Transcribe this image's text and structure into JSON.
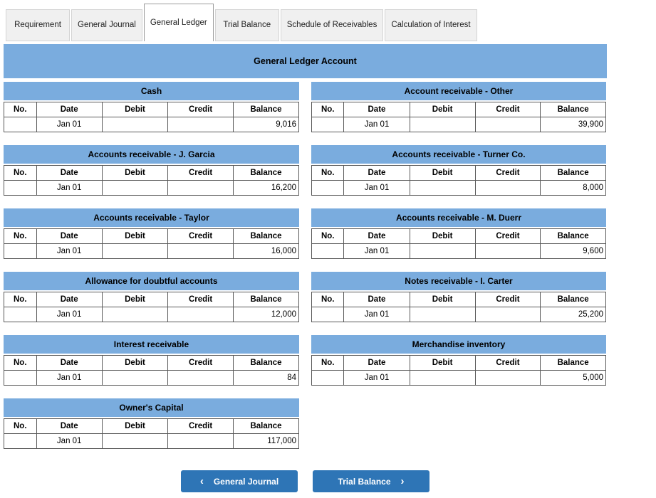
{
  "tabs": [
    {
      "label": "Requirement",
      "active": false
    },
    {
      "label": "General Journal",
      "active": false
    },
    {
      "label": "General Ledger",
      "active": true
    },
    {
      "label": "Trial Balance",
      "active": false
    },
    {
      "label": "Schedule of Receivables",
      "active": false
    },
    {
      "label": "Calculation of Interest",
      "active": false
    }
  ],
  "header": {
    "title": "General Ledger Account"
  },
  "table_columns": [
    "No.",
    "Date",
    "Debit",
    "Credit",
    "Balance"
  ],
  "accounts": [
    {
      "column": "left",
      "title": "Cash",
      "row": {
        "no": "",
        "date": "Jan 01",
        "debit": "",
        "credit": "",
        "balance": "9,016"
      }
    },
    {
      "column": "right",
      "title": "Account receivable - Other",
      "row": {
        "no": "",
        "date": "Jan 01",
        "debit": "",
        "credit": "",
        "balance": "39,900"
      }
    },
    {
      "column": "left",
      "title": "Accounts receivable - J. Garcia",
      "row": {
        "no": "",
        "date": "Jan 01",
        "debit": "",
        "credit": "",
        "balance": "16,200"
      }
    },
    {
      "column": "right",
      "title": "Accounts receivable - Turner Co.",
      "row": {
        "no": "",
        "date": "Jan 01",
        "debit": "",
        "credit": "",
        "balance": "8,000"
      }
    },
    {
      "column": "left",
      "title": "Accounts receivable - Taylor",
      "row": {
        "no": "",
        "date": "Jan 01",
        "debit": "",
        "credit": "",
        "balance": "16,000"
      }
    },
    {
      "column": "right",
      "title": "Accounts receivable - M. Duerr",
      "row": {
        "no": "",
        "date": "Jan 01",
        "debit": "",
        "credit": "",
        "balance": "9,600"
      }
    },
    {
      "column": "left",
      "title": "Allowance for doubtful accounts",
      "row": {
        "no": "",
        "date": "Jan 01",
        "debit": "",
        "credit": "",
        "balance": "12,000"
      }
    },
    {
      "column": "right",
      "title": "Notes receivable - I. Carter",
      "row": {
        "no": "",
        "date": "Jan 01",
        "debit": "",
        "credit": "",
        "balance": "25,200"
      }
    },
    {
      "column": "left",
      "title": "Interest receivable",
      "row": {
        "no": "",
        "date": "Jan 01",
        "debit": "",
        "credit": "",
        "balance": "84"
      }
    },
    {
      "column": "right",
      "title": "Merchandise inventory",
      "row": {
        "no": "",
        "date": "Jan 01",
        "debit": "",
        "credit": "",
        "balance": "5,000"
      }
    },
    {
      "column": "left",
      "title": "Owner's Capital",
      "row": {
        "no": "",
        "date": "Jan 01",
        "debit": "",
        "credit": "",
        "balance": "117,000"
      }
    }
  ],
  "nav": {
    "prev_label": "General Journal",
    "prev_icon": "‹",
    "next_label": "Trial Balance",
    "next_icon": "›"
  },
  "colors": {
    "band_blue": "#7aacde",
    "button_blue": "#2e75b6",
    "table_border": "#595959"
  }
}
